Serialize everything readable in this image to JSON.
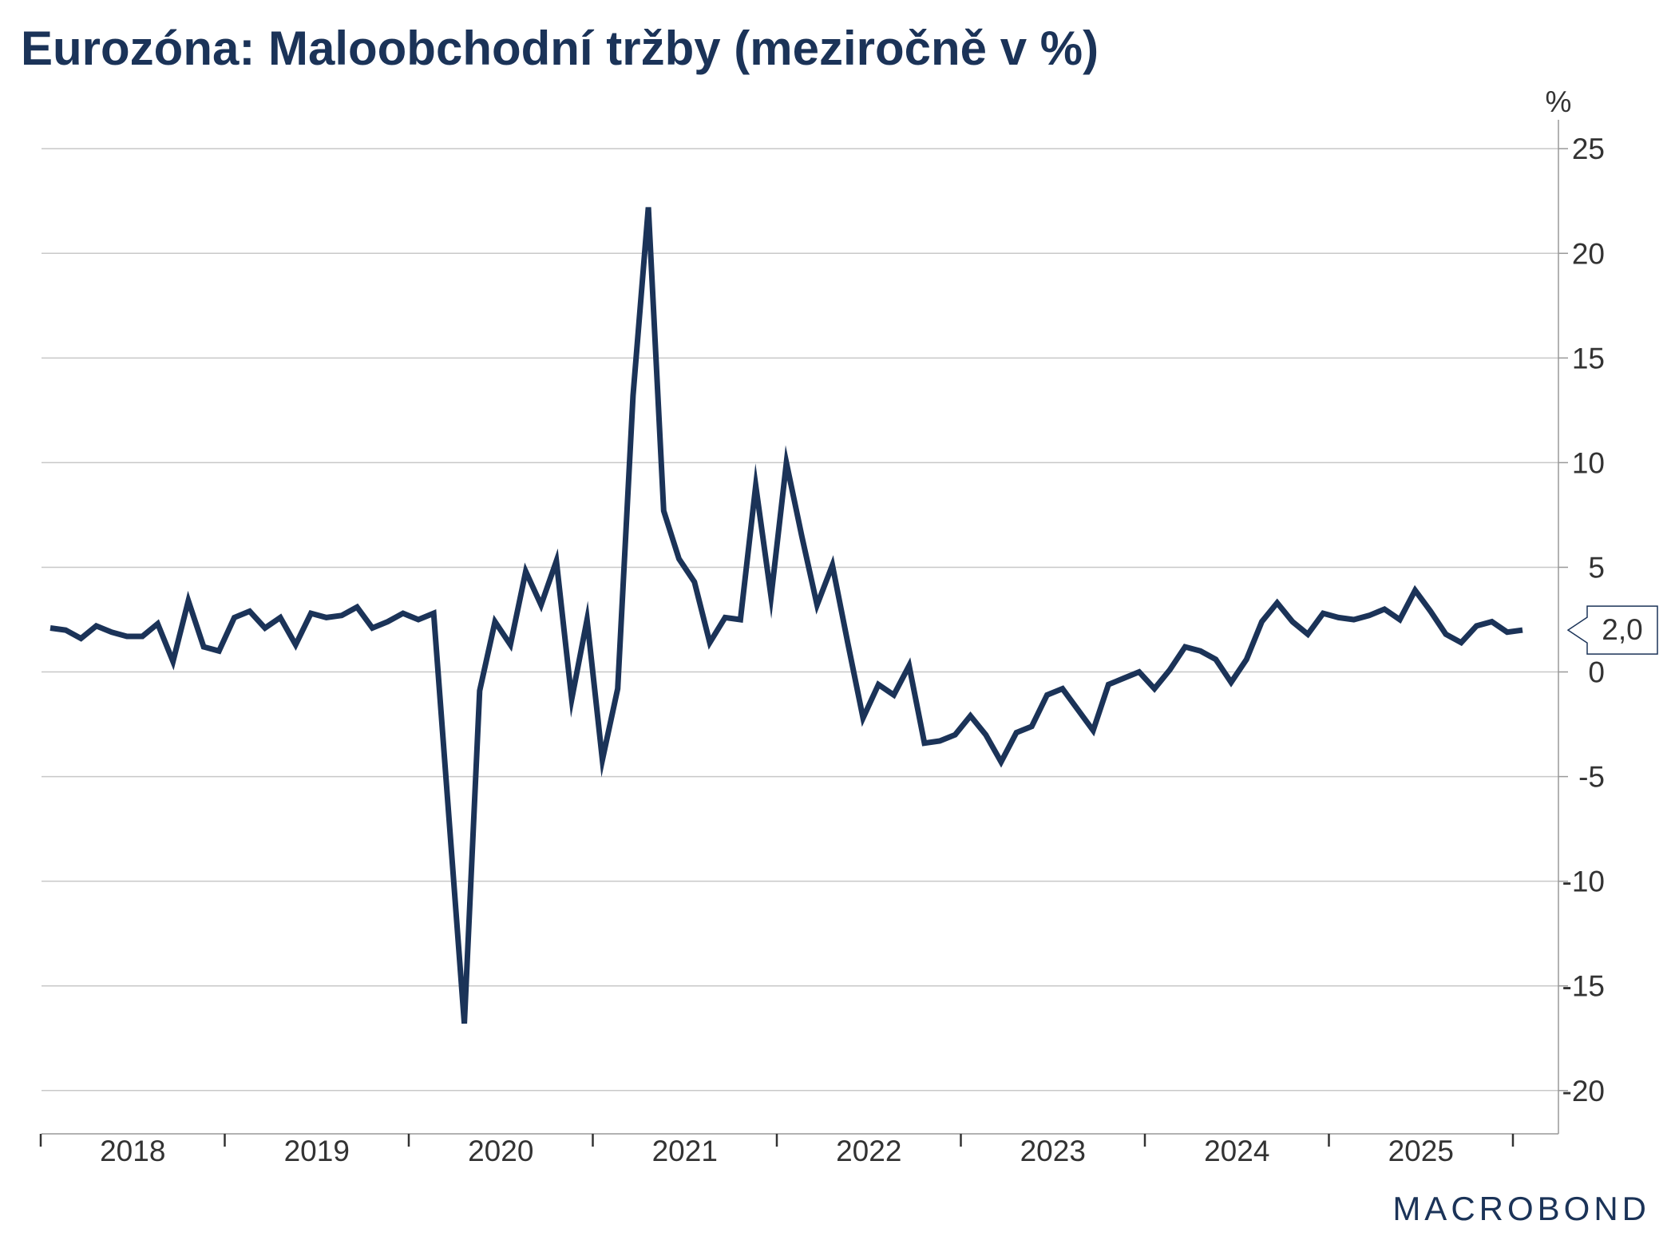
{
  "chart_data": {
    "type": "line",
    "title": "Eurozóna: Maloobchodní tržby (meziročně v %)",
    "unit_label": "%",
    "ylim": [
      -21,
      26
    ],
    "y_ticks": [
      25,
      20,
      15,
      10,
      5,
      0,
      -5,
      -10,
      -15,
      -20
    ],
    "y_axis_position": "right",
    "grid": true,
    "x_tick_labels": [
      "2018",
      "2019",
      "2020",
      "2021",
      "2022",
      "2023",
      "2024",
      "2025"
    ],
    "last_value_label": "2,0",
    "series": [
      {
        "color": "#1b3358",
        "start": "2018-01",
        "frequency": "monthly",
        "values": [
          2.1,
          2.0,
          1.6,
          2.2,
          1.9,
          1.7,
          1.7,
          2.3,
          0.5,
          3.4,
          1.2,
          1.0,
          2.6,
          2.9,
          2.1,
          2.6,
          1.3,
          2.8,
          2.6,
          2.7,
          3.1,
          2.1,
          2.4,
          2.8,
          2.5,
          2.8,
          -7.0,
          -16.8,
          -0.9,
          2.4,
          1.3,
          4.8,
          3.2,
          5.3,
          -1.3,
          2.5,
          -4.2,
          -0.8,
          13.2,
          22.2,
          7.7,
          5.4,
          4.3,
          1.4,
          2.6,
          2.5,
          8.9,
          3.6,
          10.0,
          6.5,
          3.2,
          5.1,
          1.4,
          -2.2,
          -0.6,
          -1.1,
          0.3,
          -3.4,
          -3.3,
          -3.0,
          -2.1,
          -3.0,
          -4.3,
          -2.9,
          -2.6,
          -1.1,
          -0.8,
          -1.8,
          -2.8,
          -0.6,
          -0.3,
          0.0,
          -0.8,
          0.1,
          1.2,
          1.0,
          0.6,
          -0.5,
          0.6,
          2.4,
          3.3,
          2.4,
          1.8,
          2.8,
          2.6,
          2.5,
          2.7,
          3.0,
          2.5,
          3.9,
          2.9,
          1.8,
          1.4,
          2.2,
          2.4,
          1.9,
          2.0
        ]
      }
    ]
  },
  "branding": {
    "logo_text": "MACROBOND"
  }
}
